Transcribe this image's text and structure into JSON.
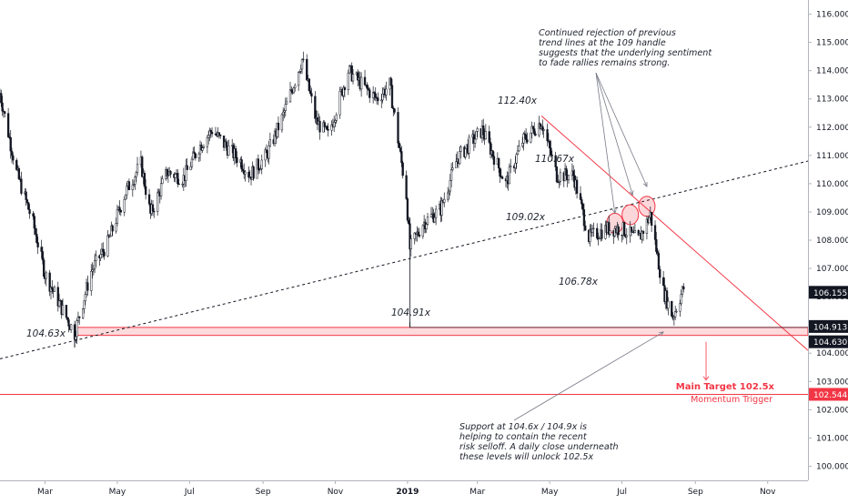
{
  "chart_data": {
    "type": "candlestick",
    "instrument": "",
    "y_axis": {
      "position": "right",
      "range": [
        99.5,
        116.5
      ],
      "ticks": [
        "116.000",
        "115.000",
        "114.000",
        "113.000",
        "112.000",
        "111.000",
        "110.000",
        "109.000",
        "108.000",
        "107.000",
        "106.000",
        "105.000",
        "104.000",
        "103.000",
        "102.000",
        "101.000",
        "100.000"
      ]
    },
    "x_axis": {
      "range": [
        "2018-01-22",
        "2019-12-05"
      ],
      "ticks": [
        {
          "date": "2018-03-01",
          "label": "Mar",
          "bold": false
        },
        {
          "date": "2018-05-01",
          "label": "May",
          "bold": false
        },
        {
          "date": "2018-07-01",
          "label": "Jul",
          "bold": false
        },
        {
          "date": "2018-09-01",
          "label": "Sep",
          "bold": false
        },
        {
          "date": "2018-11-01",
          "label": "Nov",
          "bold": false
        },
        {
          "date": "2019-01-01",
          "label": "2019",
          "bold": true
        },
        {
          "date": "2019-03-01",
          "label": "Mar",
          "bold": false
        },
        {
          "date": "2019-05-01",
          "label": "May",
          "bold": false
        },
        {
          "date": "2019-07-01",
          "label": "Jul",
          "bold": false
        },
        {
          "date": "2019-09-01",
          "label": "Sep",
          "bold": false
        },
        {
          "date": "2019-11-01",
          "label": "Nov",
          "bold": false
        }
      ]
    },
    "price_path": [
      [
        "2018-01-22",
        113.2
      ],
      [
        "2018-02-05",
        110.4
      ],
      [
        "2018-02-19",
        108.6
      ],
      [
        "2018-03-01",
        106.8
      ],
      [
        "2018-03-15",
        105.6
      ],
      [
        "2018-03-26",
        104.7
      ],
      [
        "2018-04-09",
        106.9
      ],
      [
        "2018-04-23",
        107.9
      ],
      [
        "2018-05-08",
        109.7
      ],
      [
        "2018-05-21",
        110.7
      ],
      [
        "2018-05-29",
        108.9
      ],
      [
        "2018-06-12",
        110.4
      ],
      [
        "2018-06-26",
        110.2
      ],
      [
        "2018-07-09",
        111.3
      ],
      [
        "2018-07-20",
        111.9
      ],
      [
        "2018-07-30",
        111.4
      ],
      [
        "2018-08-13",
        110.8
      ],
      [
        "2018-08-21",
        110.3
      ],
      [
        "2018-09-04",
        111.0
      ],
      [
        "2018-09-17",
        112.3
      ],
      [
        "2018-10-04",
        114.4
      ],
      [
        "2018-10-16",
        112.2
      ],
      [
        "2018-10-26",
        111.7
      ],
      [
        "2018-11-12",
        114.0
      ],
      [
        "2018-11-26",
        113.4
      ],
      [
        "2018-12-06",
        113.0
      ],
      [
        "2018-12-17",
        113.5
      ],
      [
        "2018-12-31",
        109.6
      ],
      [
        "2019-01-03",
        107.7
      ],
      [
        "2019-01-14",
        108.6
      ],
      [
        "2019-01-29",
        109.1
      ],
      [
        "2019-02-12",
        110.9
      ],
      [
        "2019-03-05",
        111.9
      ],
      [
        "2019-03-25",
        110.0
      ],
      [
        "2019-04-08",
        111.5
      ],
      [
        "2019-04-24",
        112.2
      ],
      [
        "2019-05-07",
        110.3
      ],
      [
        "2019-05-21",
        110.3
      ],
      [
        "2019-06-03",
        108.1
      ],
      [
        "2019-06-18",
        108.4
      ],
      [
        "2019-07-01",
        108.4
      ],
      [
        "2019-07-15",
        108.0
      ],
      [
        "2019-07-25",
        108.9
      ],
      [
        "2019-08-05",
        106.2
      ],
      [
        "2019-08-13",
        105.3
      ],
      [
        "2019-08-22",
        106.3
      ]
    ],
    "last_price": "106.155",
    "price_labels": [
      "104.913",
      "104.630",
      "102.544"
    ],
    "levels": [
      {
        "label": "112.40x"
      },
      {
        "label": "110.67x"
      },
      {
        "label": "109.02x"
      },
      {
        "label": "106.78x"
      },
      {
        "label": "104.91x"
      },
      {
        "label": "104.63x"
      }
    ],
    "support_zone": {
      "low": 104.63,
      "high": 104.913,
      "color": "#f23645"
    },
    "target_line": {
      "value": 102.544,
      "color": "#f23645"
    },
    "trendlines": [
      {
        "style": "dashed",
        "color": "#131722",
        "from": [
          "2018-01-22",
          103.8
        ],
        "to": [
          "2019-12-05",
          110.8
        ]
      },
      {
        "style": "solid",
        "color": "#f23645",
        "from": [
          "2019-04-24",
          112.4
        ],
        "to": [
          "2019-12-05",
          104.1
        ]
      }
    ],
    "annotations": {
      "top": [
        "Continued rejection of previous",
        "trend lines at the 109 handle",
        "suggests that the underlying sentiment",
        "to fade rallies remains strong."
      ],
      "bottom": [
        "Support at 104.6x / 104.9x is",
        "helping to contain the recent",
        "risk selloff. A daily close underneath",
        "these levels will unlock 102.5x"
      ],
      "target_title": "Main Target 102.5x",
      "target_subtitle": "Momentum Trigger"
    },
    "colors": {
      "candle": "#131722",
      "accent": "#f23645",
      "label_bg": "#131722"
    }
  }
}
